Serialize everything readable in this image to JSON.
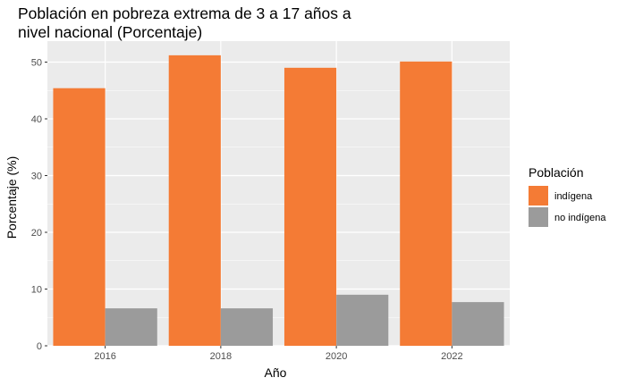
{
  "chart_data": {
    "type": "bar",
    "title_lines": [
      "Población en pobreza extrema de 3 a 17 años a",
      "nivel nacional (Porcentaje)"
    ],
    "xlabel": "Año",
    "ylabel": "Porcentaje (%)",
    "categories": [
      "2016",
      "2018",
      "2020",
      "2022"
    ],
    "series": [
      {
        "name": "indígena",
        "values": [
          45.4,
          51.2,
          49.0,
          50.1
        ],
        "color": "#F47B35"
      },
      {
        "name": "no indígena",
        "values": [
          6.6,
          6.6,
          9.0,
          7.7
        ],
        "color": "#9B9B9B"
      }
    ],
    "ylim": [
      0,
      53.7
    ],
    "yticks": [
      0,
      10,
      20,
      30,
      40,
      50
    ],
    "grid": true,
    "legend": {
      "title": "Población",
      "position": "right"
    },
    "panel_background": "#EBEBEB"
  }
}
